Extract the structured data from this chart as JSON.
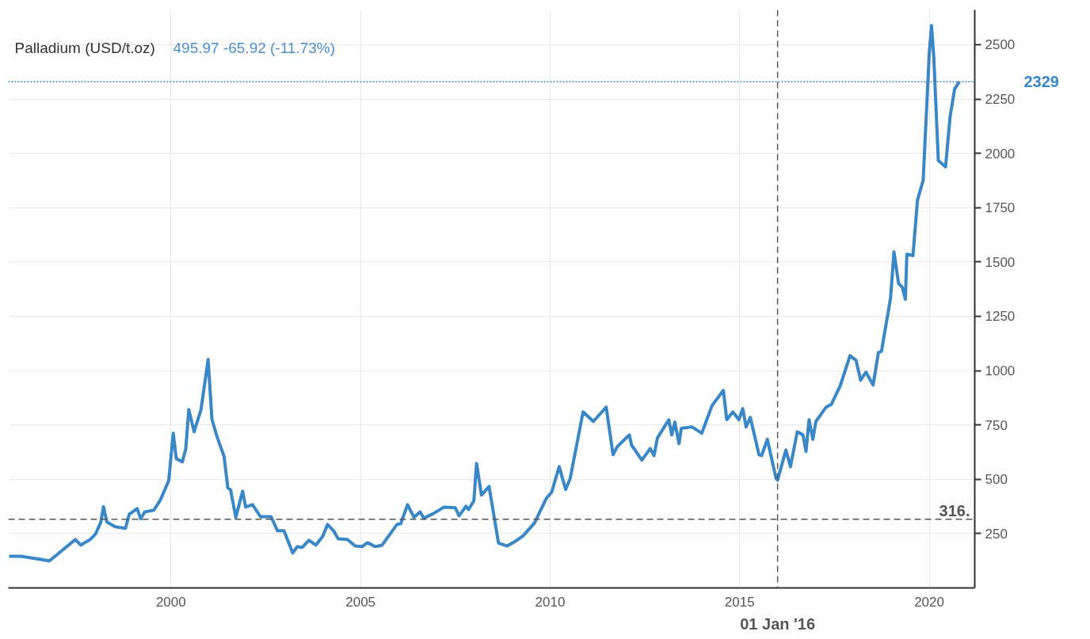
{
  "chart_data": {
    "type": "line",
    "title": "Palladium (USD/t.oz)",
    "annotations": [
      "495.97  -65.92 (-11.73%)"
    ],
    "x": [
      1995.73,
      1996.04,
      1996.57,
      1996.79,
      1997.05,
      1997.48,
      1997.62,
      1997.87,
      1998.01,
      1998.15,
      1998.22,
      1998.31,
      1998.54,
      1998.8,
      1998.9,
      1999.11,
      1999.2,
      1999.31,
      1999.55,
      1999.72,
      1999.94,
      2000.06,
      2000.14,
      2000.3,
      2000.39,
      2000.47,
      2000.61,
      2000.79,
      2000.98,
      2001.08,
      2001.22,
      2001.4,
      2001.5,
      2001.57,
      2001.71,
      2001.89,
      2001.97,
      2002.15,
      2002.36,
      2002.64,
      2002.81,
      2002.98,
      2003.21,
      2003.33,
      2003.46,
      2003.64,
      2003.82,
      2004.0,
      2004.13,
      2004.29,
      2004.41,
      2004.65,
      2004.86,
      2005.04,
      2005.18,
      2005.39,
      2005.57,
      2005.84,
      2005.96,
      2006.06,
      2006.24,
      2006.41,
      2006.57,
      2006.67,
      2006.93,
      2007.2,
      2007.5,
      2007.6,
      2007.78,
      2007.85,
      2007.99,
      2008.06,
      2008.19,
      2008.39,
      2008.64,
      2008.87,
      2009.09,
      2009.29,
      2009.59,
      2009.9,
      2010.04,
      2010.24,
      2010.41,
      2010.53,
      2010.87,
      2011.14,
      2011.48,
      2011.66,
      2011.77,
      2012.09,
      2012.15,
      2012.42,
      2012.64,
      2012.74,
      2012.83,
      2013.13,
      2013.21,
      2013.29,
      2013.4,
      2013.46,
      2013.74,
      2014.0,
      2014.27,
      2014.57,
      2014.66,
      2014.82,
      2014.98,
      2015.08,
      2015.17,
      2015.28,
      2015.51,
      2015.58,
      2015.73,
      2015.89,
      2015.96,
      2016.0,
      2016.22,
      2016.34,
      2016.52,
      2016.67,
      2016.75,
      2016.83,
      2016.93,
      2017.01,
      2017.28,
      2017.42,
      2017.66,
      2017.91,
      2018.07,
      2018.19,
      2018.33,
      2018.52,
      2018.66,
      2018.74,
      2018.98,
      2019.07,
      2019.19,
      2019.29,
      2019.37,
      2019.41,
      2019.57,
      2019.69,
      2019.84,
      2020.0,
      2020.06,
      2020.12,
      2020.24,
      2020.43,
      2020.55,
      2020.67,
      2020.79
    ],
    "series": [
      {
        "color": "#3a87c8",
        "values": [
          146,
          146,
          131,
          124,
          161,
          223,
          197,
          223,
          248,
          303,
          374,
          303,
          281,
          274,
          339,
          365,
          318,
          350,
          358,
          405,
          493,
          712,
          595,
          580,
          639,
          821,
          719,
          818,
          1051,
          777,
          693,
          606,
          460,
          453,
          325,
          445,
          372,
          383,
          328,
          328,
          263,
          263,
          161,
          190,
          186,
          219,
          197,
          237,
          292,
          263,
          226,
          223,
          193,
          190,
          208,
          190,
          197,
          263,
          292,
          296,
          383,
          325,
          350,
          321,
          343,
          372,
          369,
          332,
          376,
          361,
          401,
          573,
          427,
          467,
          206,
          193,
          215,
          240,
          299,
          412,
          440,
          558,
          453,
          504,
          810,
          766,
          832,
          613,
          650,
          704,
          657,
          588,
          642,
          609,
          690,
          774,
          704,
          763,
          664,
          734,
          741,
          712,
          839,
          909,
          774,
          810,
          774,
          825,
          741,
          785,
          613,
          609,
          684,
          558,
          504,
          496,
          635,
          558,
          719,
          704,
          628,
          774,
          684,
          766,
          832,
          845,
          934,
          1069,
          1047,
          956,
          993,
          934,
          1084,
          1089,
          1334,
          1547,
          1401,
          1383,
          1328,
          1536,
          1529,
          1785,
          1876,
          2460,
          2588,
          2442,
          1967,
          1938,
          2168,
          2296,
          2329
        ]
      }
    ],
    "xlim": [
      1995.71,
      2021.2
    ],
    "ylim": [
      0,
      2660
    ],
    "xticks": [
      2000,
      2005,
      2010,
      {
        "value": 2015,
        "label": "2015"
      },
      2020
    ],
    "yticks": [
      250,
      500,
      750,
      1000,
      1250,
      1500,
      1750,
      2000,
      2250,
      2500
    ],
    "grid": true,
    "marker": "none",
    "line_style": "solid",
    "ref_lines": [
      {
        "axis": "y",
        "value": 2329,
        "label": "2329",
        "color": "#3a87c8",
        "line_style": "dotted"
      },
      {
        "axis": "y",
        "value": 316,
        "label": "316.",
        "color": "#555555",
        "line_style": "dashed"
      },
      {
        "axis": "x",
        "value": 2016,
        "label": "01 Jan '16",
        "color": "#555555",
        "line_style": "dashed"
      }
    ]
  }
}
